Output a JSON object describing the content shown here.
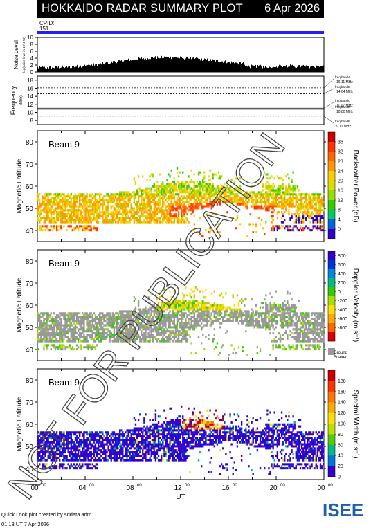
{
  "header": {
    "title": "HOKKAIDO RADAR SUMMARY PLOT",
    "date": "6 Apr 2026",
    "cpid_label": "CPID:",
    "cpid_value": "151"
  },
  "noise_panel": {
    "ylabel": "Noise Level",
    "ylabel_sub": "log(noise level in 10^4 W)",
    "yticks": [
      "10",
      "8",
      "6",
      "4",
      "2",
      "0"
    ]
  },
  "freq_panel": {
    "ylabel": "Frequency",
    "ylabel_sub": "(MHz)",
    "yticks": [
      "18",
      "16",
      "14",
      "12",
      "10",
      "8"
    ],
    "bands": [
      {
        "name": "freq bandA",
        "value": "16.11 MHz"
      },
      {
        "name": "freq bandB",
        "value": "14.64 MHz"
      },
      {
        "name": "freq bandC",
        "value": "11.07 MHz"
      },
      {
        "name": "freq bandD",
        "value": "10.80 MHz"
      },
      {
        "name": "freq bandE",
        "value": "9.11 MHz"
      }
    ]
  },
  "panels": [
    {
      "beam": "Beam  9",
      "ylabel": "Magnetic Latitude",
      "yticks": [
        "80",
        "70",
        "60",
        "50",
        "40"
      ],
      "colorbar_label": "Backscatter Power (dB)",
      "colorbar_ticks": [
        "36",
        "32",
        "28",
        "24",
        "20",
        "16",
        "12",
        "8",
        "4",
        "0"
      ],
      "colors": [
        "#cc0000",
        "#ff3300",
        "#ff6600",
        "#ff9900",
        "#ffcc00",
        "#dddd00",
        "#99dd00",
        "#33cc00",
        "#00cc66",
        "#0066dd",
        "#3300cc"
      ]
    },
    {
      "beam": "Beam  9",
      "ylabel": "Magnetic Latitude",
      "yticks": [
        "80",
        "70",
        "60",
        "50",
        "40"
      ],
      "colorbar_label": "Doppler Velocity (m s⁻¹)",
      "colorbar_ticks": [
        "800",
        "600",
        "400",
        "200",
        "0",
        "-200",
        "-400",
        "-600",
        "-800"
      ],
      "ground_label": "Ground",
      "scatter_label": "Scatter",
      "colors": [
        "#3300cc",
        "#0033dd",
        "#0088dd",
        "#00bb88",
        "#33cc00",
        "#aadd00",
        "#ffdd00",
        "#ffaa00",
        "#ff6600",
        "#dd0000"
      ]
    },
    {
      "beam": "Beam  9",
      "ylabel": "Magnetic Latitude",
      "yticks": [
        "80",
        "70",
        "60",
        "50",
        "40"
      ],
      "colorbar_label": "Spectral Width (m s⁻¹)",
      "colorbar_ticks": [
        "180",
        "160",
        "140",
        "120",
        "100",
        "80",
        "60",
        "40",
        "20",
        "0"
      ],
      "colors": [
        "#cc0000",
        "#ff3300",
        "#ff7700",
        "#ffaa00",
        "#ffdd00",
        "#bbdd00",
        "#55cc00",
        "#00bb88",
        "#0077dd",
        "#3300cc"
      ]
    }
  ],
  "xaxis": {
    "label": "UT",
    "ticks": [
      "00",
      "04",
      "08",
      "12",
      "16",
      "20",
      "00"
    ],
    "tick_sup": "00"
  },
  "footer": {
    "line1": "Quick Look plot created by sddata.adm",
    "line2": "01:13 UT  7 Apr 2026",
    "logo_text": "ISEE"
  },
  "watermark": "NOT FOR PUBLICATION",
  "chart_data": [
    {
      "type": "heatmap",
      "title": "Backscatter Power (dB)",
      "xlabel": "UT",
      "ylabel": "Magnetic Latitude",
      "xlim": [
        0,
        24
      ],
      "ylim": [
        35,
        85
      ],
      "zlim": [
        0,
        36
      ],
      "beam": 9
    },
    {
      "type": "heatmap",
      "title": "Doppler Velocity (m s-1)",
      "xlabel": "UT",
      "ylabel": "Magnetic Latitude",
      "xlim": [
        0,
        24
      ],
      "ylim": [
        35,
        85
      ],
      "zlim": [
        -800,
        800
      ],
      "beam": 9
    },
    {
      "type": "heatmap",
      "title": "Spectral Width (m s-1)",
      "xlabel": "UT",
      "ylabel": "Magnetic Latitude",
      "xlim": [
        0,
        24
      ],
      "ylim": [
        35,
        85
      ],
      "zlim": [
        0,
        180
      ],
      "beam": 9
    }
  ]
}
